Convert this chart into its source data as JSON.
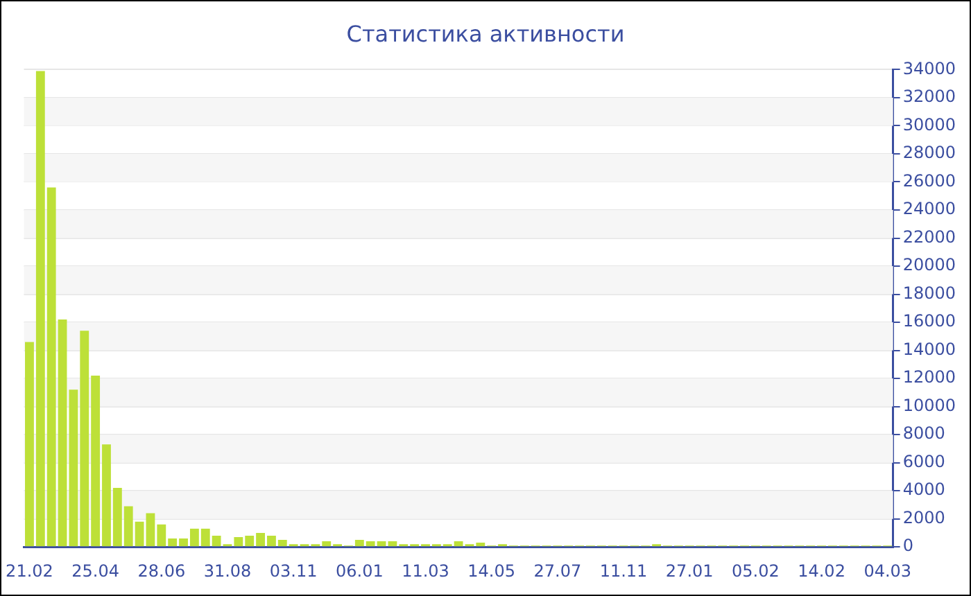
{
  "chart_data": {
    "type": "bar",
    "title": "Статистика активности",
    "categories": [
      "21.02",
      null,
      null,
      null,
      null,
      null,
      "25.04",
      null,
      null,
      null,
      null,
      null,
      "28.06",
      null,
      null,
      null,
      null,
      null,
      "31.08",
      null,
      null,
      null,
      null,
      null,
      "03.11",
      null,
      null,
      null,
      null,
      null,
      "06.01",
      null,
      null,
      null,
      null,
      null,
      "11.03",
      null,
      null,
      null,
      null,
      null,
      "14.05",
      null,
      null,
      null,
      null,
      null,
      "27.07",
      null,
      null,
      null,
      null,
      null,
      "11.11",
      null,
      null,
      null,
      null,
      null,
      "27.01",
      null,
      null,
      null,
      null,
      null,
      "05.02",
      null,
      null,
      null,
      null,
      null,
      "14.02",
      null,
      null,
      null,
      null,
      null,
      "04.03"
    ],
    "values": [
      14600,
      33900,
      25600,
      16200,
      11200,
      15400,
      12200,
      7300,
      4200,
      2900,
      1800,
      2400,
      1600,
      600,
      600,
      1300,
      1300,
      800,
      200,
      700,
      800,
      1000,
      800,
      500,
      200,
      200,
      200,
      400,
      200,
      100,
      500,
      400,
      400,
      400,
      200,
      200,
      200,
      200,
      200,
      400,
      200,
      300,
      100,
      200,
      100,
      100,
      100,
      100,
      100,
      100,
      100,
      100,
      100,
      100,
      100,
      100,
      100,
      200,
      100,
      100,
      100,
      100,
      100,
      100,
      100,
      100,
      100,
      100,
      100,
      100,
      100,
      100,
      100,
      100,
      100,
      100,
      100,
      100,
      100
    ],
    "color": "#bde038",
    "ylim": [
      0,
      34000
    ],
    "yticks": [
      0,
      2000,
      4000,
      6000,
      8000,
      10000,
      12000,
      14000,
      16000,
      18000,
      20000,
      22000,
      24000,
      26000,
      28000,
      30000,
      32000,
      34000
    ],
    "grid": "y",
    "legend": false
  }
}
